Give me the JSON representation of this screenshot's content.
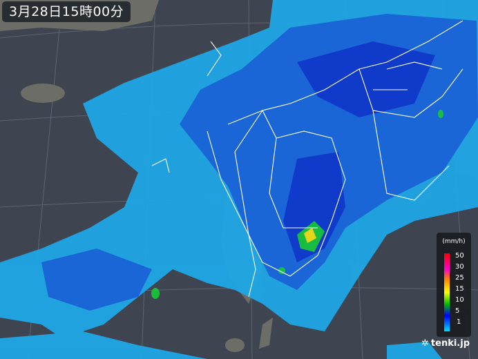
{
  "title": "3月28日15時00分",
  "legend": {
    "unit": "(mm/h)",
    "levels": [
      "50",
      "30",
      "25",
      "15",
      "10",
      "5",
      "1"
    ],
    "colors": [
      "#ff0000",
      "#ff00c8",
      "#ff8000",
      "#ffff00",
      "#00c000",
      "#0000ff",
      "#00e0ff"
    ]
  },
  "brand": {
    "name": "tenki.jp",
    "icon": "tenki-logo-icon"
  },
  "colors": {
    "sea": "#3e4551",
    "land": "#6b6d66",
    "rain_light": "#1fa7e6",
    "rain_mid": "#1a5fd6",
    "rain_heavy": "#0f33c8",
    "borders": "#ffffff"
  }
}
